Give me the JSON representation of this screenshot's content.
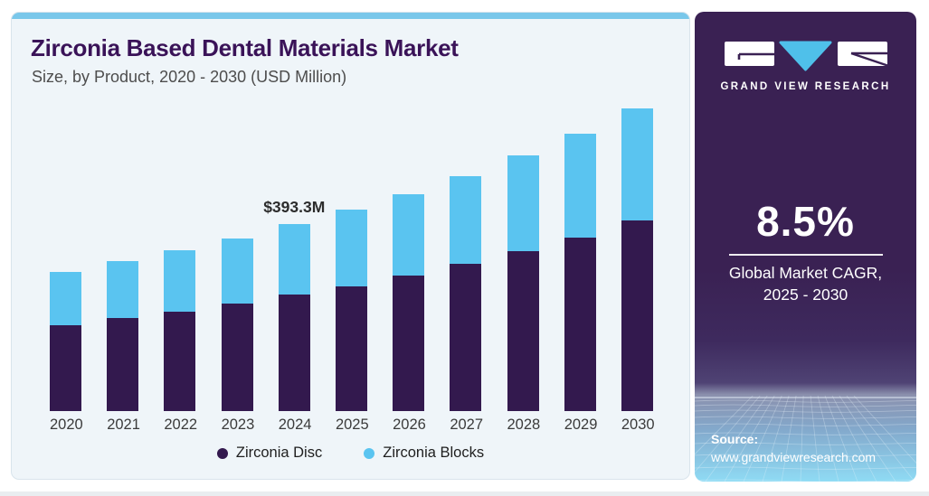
{
  "header": {
    "title": "Zirconia Based Dental Materials Market",
    "subtitle": "Size, by Product, 2020 - 2030 (USD Million)"
  },
  "chart_data": {
    "type": "bar",
    "stacked": true,
    "unit": "USD Million",
    "title": "Zirconia Based Dental Materials Market Size, by Product, 2020 - 2030 (USD Million)",
    "categories": [
      "2020",
      "2021",
      "2022",
      "2023",
      "2024",
      "2025",
      "2026",
      "2027",
      "2028",
      "2029",
      "2030"
    ],
    "series": [
      {
        "name": "Zirconia Disc",
        "color": "#33194e",
        "values": [
          180.5,
          195.7,
          209.0,
          226.1,
          245.1,
          262.2,
          285.0,
          309.7,
          336.3,
          364.8,
          400.9
        ]
      },
      {
        "name": "Zirconia Blocks",
        "color": "#5ac4f0",
        "values": [
          112.1,
          119.7,
          129.2,
          136.8,
          148.2,
          161.5,
          171.0,
          184.3,
          201.4,
          218.5,
          235.6
        ]
      }
    ],
    "totals": [
      292.6,
      315.4,
      338.2,
      362.9,
      393.3,
      423.7,
      456.0,
      494.0,
      537.7,
      583.3,
      636.5
    ],
    "annotation": {
      "text": "$393.3M",
      "category": "2024"
    },
    "legend_position": "bottom",
    "ylim": [
      0,
      636.5
    ],
    "grid": false
  },
  "sidebar": {
    "brand": "GRAND VIEW RESEARCH",
    "cagr_value": "8.5%",
    "cagr_label_line1": "Global Market CAGR,",
    "cagr_label_line2": "2025 - 2030",
    "source_label": "Source:",
    "source_url": "www.grandviewresearch.com",
    "colors": {
      "background": "#3a2153",
      "logo_accent": "#4fc0ea",
      "card_accent": "#79c7ea"
    }
  }
}
